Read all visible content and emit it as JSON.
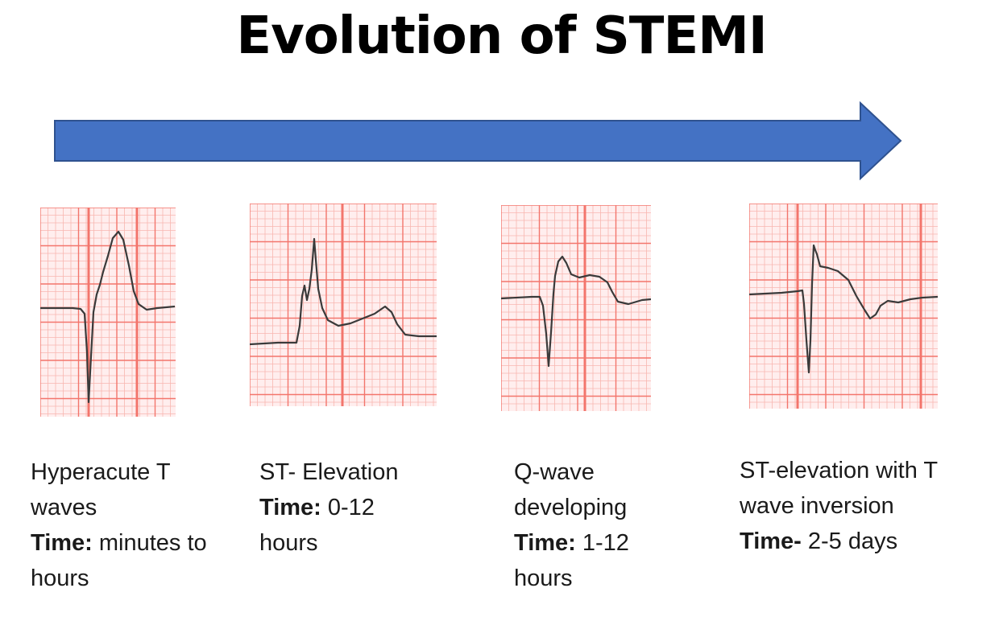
{
  "title": "Evolution of STEMI",
  "arrow": {
    "color": "#4472c4",
    "border": "#2f528f"
  },
  "grid": {
    "minor": "#f8b6b0",
    "major": "#f3756c",
    "background": "#ffeeee"
  },
  "trace_color": "#3a3a3a",
  "stages": [
    {
      "name": "Hyperacute T waves",
      "name_line1": "Hyperacute T",
      "name_line2": "waves",
      "time_label": "Time:",
      "time_value": "minutes to",
      "time_value2": "hours"
    },
    {
      "name": "ST- Elevation",
      "time_label": "Time:",
      "time_value": "0-12",
      "time_value2": "hours"
    },
    {
      "name": "Q-wave developing",
      "name_line1": "Q-wave",
      "name_line2": "developing",
      "time_label": "Time:",
      "time_value": "1-12",
      "time_value2": "hours"
    },
    {
      "name": "ST-elevation with T wave inversion",
      "name_line1": "ST-elevation with T",
      "name_line2": "wave inversion",
      "time_label": "Time-",
      "time_value": "2-5 days"
    }
  ]
}
